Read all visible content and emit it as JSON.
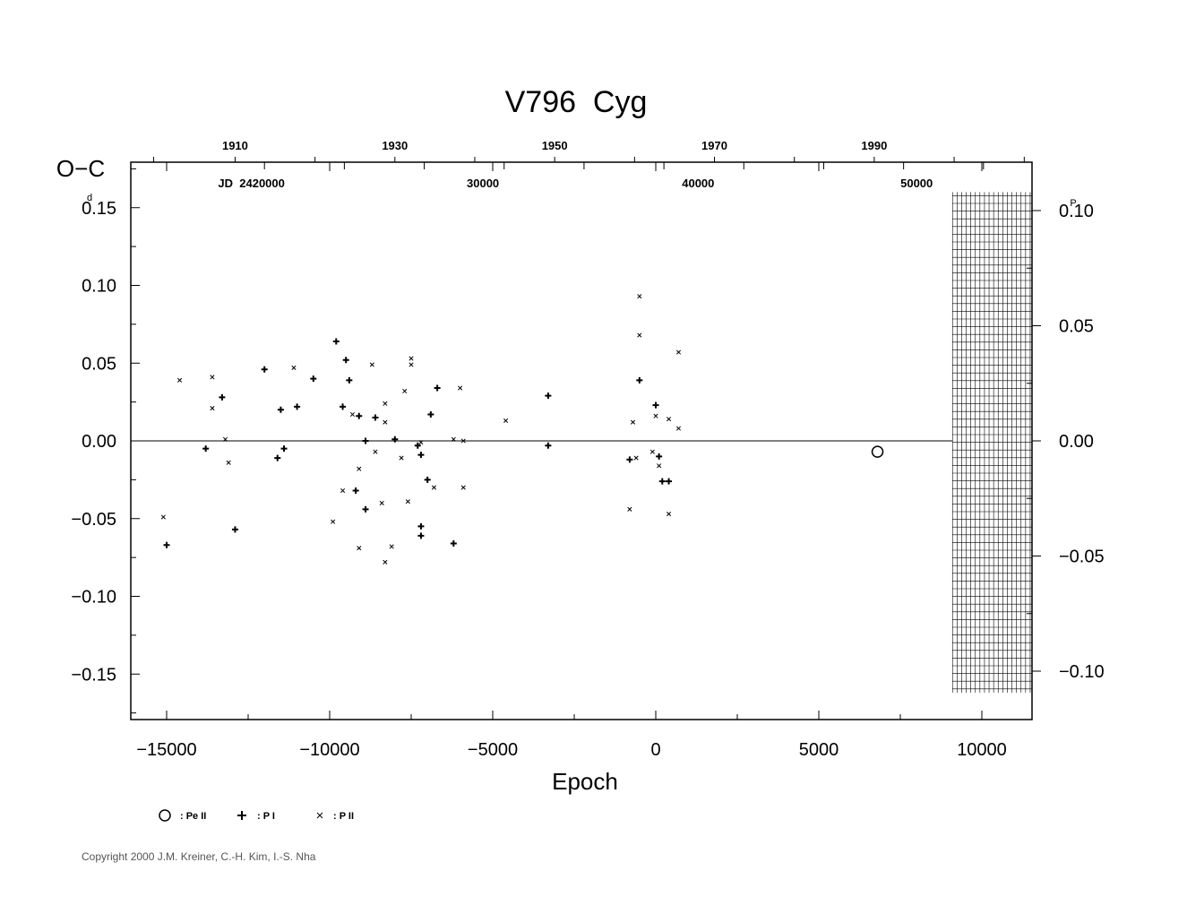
{
  "chart_data": {
    "type": "scatter",
    "title": "V796  Cyg",
    "xlabel": "Epoch",
    "ylabel": "O−C",
    "ylabel_unit": "d",
    "right_unit": "P",
    "xlim": [
      -16000,
      11500
    ],
    "ylim": [
      -0.18,
      0.178
    ],
    "x_ticks": [
      -15000,
      -10000,
      -5000,
      0,
      5000,
      10000
    ],
    "x_tick_labels": [
      "−15000",
      "−10000",
      "−5000",
      "0",
      "5000",
      "10000"
    ],
    "y_ticks": [
      0.15,
      0.1,
      0.05,
      0.0,
      -0.05,
      -0.1,
      -0.15
    ],
    "y_tick_labels": [
      "0.15",
      "0.10",
      "0.05",
      "0.00",
      "−0.05",
      "−0.10",
      "−0.15"
    ],
    "right_ticks": [
      0.1,
      0.05,
      0.0,
      -0.05,
      -0.1
    ],
    "right_tick_labels": [
      "0.10",
      "0.05",
      "0.00",
      "−0.05",
      "−0.10"
    ],
    "right_scale_factor": 0.6795,
    "year_ticks": [
      1910,
      1930,
      1950,
      1970,
      1990
    ],
    "year_epochs": [
      -12900,
      -8000,
      -3100,
      1800,
      6700
    ],
    "year_minor_epochs": [
      -15400,
      -10450,
      -5550,
      -650,
      4250,
      9150,
      11300
    ],
    "jd_labels": [
      "JD  2420000",
      "30000",
      "40000",
      "50000"
    ],
    "jd_epochs": [
      -12400,
      -5300,
      1300,
      8000
    ],
    "jd_minor_epochs": [
      -12000,
      -9550,
      -7100,
      -4650,
      -2200,
      250,
      2700,
      5150,
      7600,
      10050
    ],
    "grid_block_x": [
      9100,
      11500
    ],
    "grid_block_y": [
      -0.162,
      0.16
    ],
    "zero_line": true,
    "series": [
      {
        "name": "Pe II",
        "marker": "circle",
        "points": [
          [
            6800,
            -0.007
          ]
        ]
      },
      {
        "name": "P I",
        "marker": "plus",
        "points": [
          [
            -15000,
            -0.067
          ],
          [
            -13800,
            -0.005
          ],
          [
            -13300,
            0.028
          ],
          [
            -12900,
            -0.057
          ],
          [
            -12000,
            0.046
          ],
          [
            -11600,
            -0.011
          ],
          [
            -11500,
            0.02
          ],
          [
            -11400,
            -0.005
          ],
          [
            -11000,
            0.022
          ],
          [
            -10500,
            0.04
          ],
          [
            -9800,
            0.064
          ],
          [
            -9600,
            0.022
          ],
          [
            -9500,
            0.052
          ],
          [
            -9400,
            0.039
          ],
          [
            -9200,
            -0.032
          ],
          [
            -9100,
            0.016
          ],
          [
            -8900,
            -0.044
          ],
          [
            -8900,
            0.0
          ],
          [
            -8600,
            0.015
          ],
          [
            -8000,
            0.001
          ],
          [
            -7300,
            -0.003
          ],
          [
            -7200,
            -0.055
          ],
          [
            -7200,
            -0.061
          ],
          [
            -7200,
            -0.009
          ],
          [
            -7000,
            -0.025
          ],
          [
            -6900,
            0.017
          ],
          [
            -6700,
            0.034
          ],
          [
            -6200,
            -0.066
          ],
          [
            -3300,
            0.029
          ],
          [
            -3300,
            -0.003
          ],
          [
            -800,
            -0.012
          ],
          [
            -500,
            0.039
          ],
          [
            0,
            0.023
          ],
          [
            100,
            -0.01
          ],
          [
            200,
            -0.026
          ],
          [
            400,
            -0.026
          ]
        ]
      },
      {
        "name": "P II",
        "marker": "cross",
        "points": [
          [
            -15100,
            -0.049
          ],
          [
            -14600,
            0.039
          ],
          [
            -13600,
            0.041
          ],
          [
            -13600,
            0.021
          ],
          [
            -13200,
            0.001
          ],
          [
            -13100,
            -0.014
          ],
          [
            -11100,
            0.047
          ],
          [
            -9900,
            -0.052
          ],
          [
            -9600,
            -0.032
          ],
          [
            -9300,
            0.017
          ],
          [
            -9100,
            -0.069
          ],
          [
            -9100,
            -0.018
          ],
          [
            -8700,
            0.049
          ],
          [
            -8600,
            -0.007
          ],
          [
            -8400,
            -0.04
          ],
          [
            -8300,
            0.024
          ],
          [
            -8300,
            0.012
          ],
          [
            -8300,
            -0.078
          ],
          [
            -8100,
            -0.068
          ],
          [
            -7800,
            -0.011
          ],
          [
            -7600,
            -0.039
          ],
          [
            -7500,
            0.049
          ],
          [
            -7500,
            0.053
          ],
          [
            -7700,
            0.032
          ],
          [
            -7200,
            -0.001
          ],
          [
            -6800,
            -0.03
          ],
          [
            -6200,
            0.001
          ],
          [
            -6000,
            0.034
          ],
          [
            -5900,
            -0.03
          ],
          [
            -5900,
            0.0
          ],
          [
            -4600,
            0.013
          ],
          [
            -800,
            -0.044
          ],
          [
            -700,
            0.012
          ],
          [
            -600,
            -0.011
          ],
          [
            -500,
            0.068
          ],
          [
            -500,
            0.093
          ],
          [
            -100,
            -0.007
          ],
          [
            0,
            0.016
          ],
          [
            100,
            -0.016
          ],
          [
            400,
            0.014
          ],
          [
            400,
            -0.047
          ],
          [
            700,
            0.057
          ],
          [
            700,
            0.008
          ]
        ]
      }
    ]
  },
  "legend": [
    {
      "marker": "circle",
      "label": ": Pe II"
    },
    {
      "marker": "plus",
      "label": ": P I"
    },
    {
      "marker": "cross",
      "label": ": P II"
    }
  ],
  "copyright": "Copyright 2000 J.M. Kreiner, C.-H. Kim, I.-S. Nha"
}
